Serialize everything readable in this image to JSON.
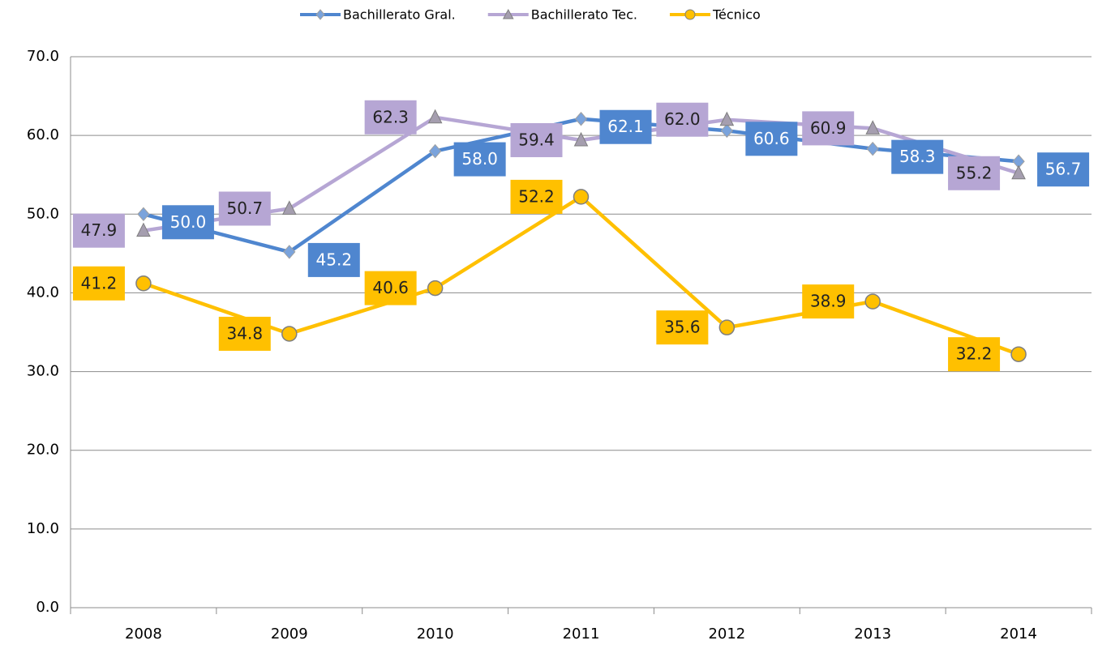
{
  "chart_data": {
    "type": "line",
    "categories": [
      "2008",
      "2009",
      "2010",
      "2011",
      "2012",
      "2013",
      "2014"
    ],
    "series": [
      {
        "name": "Bachillerato Gral.",
        "color": "#4f86cf",
        "values": [
          50.0,
          45.2,
          58.0,
          62.1,
          60.6,
          58.3,
          56.7
        ],
        "value_labels": [
          "50.0",
          "45.2",
          "58.0",
          "62.1",
          "60.6",
          "58.3",
          "56.7"
        ]
      },
      {
        "name": "Bachillerato Tec.",
        "color": "#b6a6d4",
        "values": [
          47.9,
          50.7,
          62.3,
          59.4,
          62.0,
          60.9,
          55.2
        ],
        "value_labels": [
          "47.9",
          "50.7",
          "62.3",
          "59.4",
          "62.0",
          "60.9",
          "55.2"
        ]
      },
      {
        "name": "Técnico",
        "color": "#ffc000",
        "values": [
          41.2,
          34.8,
          40.6,
          52.2,
          35.6,
          38.9,
          32.2
        ],
        "value_labels": [
          "41.2",
          "34.8",
          "40.6",
          "52.2",
          "35.6",
          "38.9",
          "32.2"
        ]
      }
    ],
    "ylim": [
      0,
      70
    ],
    "yticks": [
      {
        "value": 0,
        "label": "0.0"
      },
      {
        "value": 10,
        "label": "10.0"
      },
      {
        "value": 20,
        "label": "20.0"
      },
      {
        "value": 30,
        "label": "30.0"
      },
      {
        "value": 40,
        "label": "40.0"
      },
      {
        "value": 50,
        "label": "50.0"
      },
      {
        "value": 60,
        "label": "60.0"
      },
      {
        "value": 70,
        "label": "70.0"
      }
    ],
    "grid": true,
    "legend": "top"
  }
}
